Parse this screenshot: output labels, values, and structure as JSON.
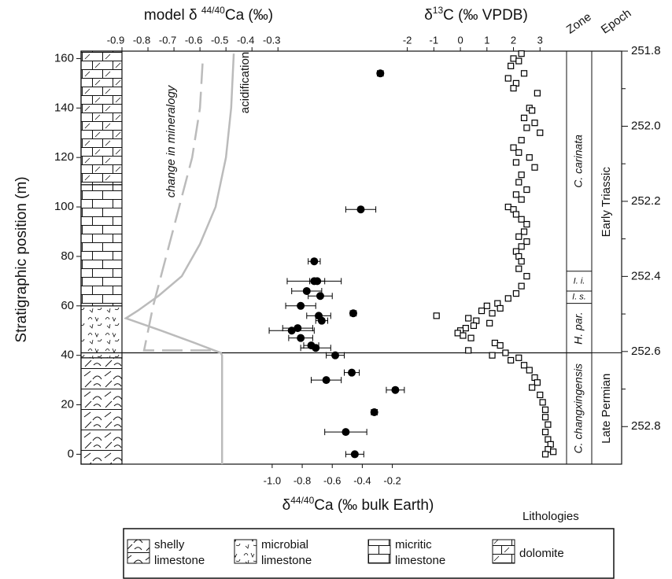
{
  "chart_data": {
    "type": "stratigraphic",
    "y_label": "Stratigraphic position (m)",
    "ylim": [
      -4,
      163
    ],
    "yticks": [
      0,
      20,
      40,
      60,
      80,
      100,
      120,
      140,
      160
    ],
    "model_axis": {
      "label": [
        "model δ ",
        "44/40",
        "Ca (‰)"
      ],
      "xlim": [
        -0.9,
        0.81
      ],
      "xticks": [
        -0.9,
        -0.8,
        -0.7,
        -0.6,
        -0.5,
        -0.4,
        -0.3
      ]
    },
    "c13_axis": {
      "label": [
        "δ",
        "13",
        "C (‰ VPDB)"
      ],
      "xlim": [
        -12.75,
        4
      ],
      "xticks": [
        -2,
        -1,
        0,
        1,
        2,
        3
      ]
    },
    "ca_axis": {
      "label": [
        "δ",
        "44/40",
        "Ca (‰ bulk Earth)"
      ],
      "xlim": [
        -2,
        0.96
      ],
      "xticks": [
        {
          "value": -1,
          "label": "-1.0"
        },
        -0.8,
        -0.6,
        -0.4,
        -0.2
      ]
    },
    "age_axis": {
      "ylim": [
        251.8,
        252.9
      ],
      "yticks": [
        251.8,
        {
          "value": 252,
          "label": "252.0"
        },
        252.2,
        252.4,
        252.6,
        252.8
      ],
      "minor_ticks": [
        251.9,
        252.1,
        252.3,
        252.5,
        252.7
      ]
    },
    "ca_data": {
      "color": "#000000",
      "position": [
        154,
        99,
        78,
        70,
        70,
        66,
        64,
        60,
        57,
        56,
        54,
        51,
        50,
        47,
        44,
        43,
        40,
        33,
        30,
        26,
        17,
        9,
        0
      ],
      "values": [
        -0.28,
        -0.41,
        -0.72,
        -0.72,
        -0.7,
        -0.77,
        -0.68,
        -0.81,
        -0.46,
        -0.69,
        -0.67,
        -0.83,
        -0.87,
        -0.81,
        -0.74,
        -0.71,
        -0.58,
        -0.47,
        -0.64,
        -0.18,
        -0.32,
        -0.51,
        -0.45
      ],
      "errors": [
        0.02,
        0.1,
        0.04,
        0.18,
        0.05,
        0.1,
        0.08,
        0.1,
        0.02,
        0.08,
        0.04,
        0.1,
        0.15,
        0.08,
        0.05,
        0.1,
        0.06,
        0.05,
        0.1,
        0.06,
        0.02,
        0.14,
        0.06
      ]
    },
    "c13_data": {
      "color": "#000000",
      "position": [
        162,
        160,
        159,
        157,
        154,
        152,
        150,
        148,
        146,
        140,
        139,
        136,
        134,
        132,
        130,
        127,
        124,
        122,
        120,
        118,
        116,
        113,
        110,
        107,
        105,
        103,
        100,
        99,
        97,
        95,
        93,
        90,
        88,
        86,
        84,
        82,
        80,
        78,
        75,
        72,
        68,
        65,
        63,
        61,
        60,
        59,
        58,
        57,
        56,
        55,
        54,
        53,
        52,
        51,
        50,
        49,
        48,
        47,
        45,
        44,
        42,
        41,
        40,
        39,
        38,
        36,
        34,
        31,
        29,
        27,
        24,
        21,
        18,
        15,
        12,
        9,
        6,
        4,
        2,
        1,
        0
      ],
      "values": [
        2.3,
        2.0,
        2.2,
        1.9,
        2.4,
        1.8,
        2.1,
        2.0,
        2.9,
        2.6,
        2.7,
        2.4,
        2.8,
        2.5,
        3.0,
        2.3,
        2.0,
        2.2,
        2.6,
        2.1,
        2.8,
        2.3,
        2.2,
        2.5,
        2.1,
        2.3,
        1.8,
        2.0,
        2.1,
        2.3,
        2.5,
        2.4,
        2.2,
        2.5,
        2.3,
        2.1,
        2.2,
        2.3,
        2.2,
        2.5,
        2.3,
        2.1,
        1.8,
        1.4,
        1.0,
        1.5,
        0.8,
        1.2,
        -0.9,
        0.3,
        0.6,
        1.1,
        0.5,
        0.2,
        0.0,
        -0.1,
        0.1,
        0.4,
        1.3,
        1.5,
        0.3,
        1.7,
        1.2,
        2.2,
        1.9,
        2.4,
        2.6,
        2.8,
        2.9,
        2.7,
        3.0,
        3.1,
        3.2,
        3.2,
        3.3,
        3.2,
        3.3,
        3.4,
        3.3,
        3.5,
        3.2
      ]
    },
    "model_curves": [
      {
        "name": "change in mineralogy",
        "color": "#bbbbbb",
        "dashed": true,
        "position": [
          158,
          140,
          120,
          100,
          80,
          60,
          42,
          42
        ],
        "values": [
          -0.59,
          -0.6,
          -0.63,
          -0.68,
          -0.73,
          -0.78,
          -0.815,
          -0.55
        ]
      },
      {
        "name": "acidification",
        "color": "#bbbbbb",
        "dashed": false,
        "position": [
          162,
          140,
          120,
          100,
          85,
          72,
          64,
          58,
          55,
          50,
          45,
          41,
          40,
          -4
        ],
        "values": [
          -0.47,
          -0.48,
          -0.5,
          -0.54,
          -0.6,
          -0.67,
          -0.76,
          -0.84,
          -0.885,
          -0.75,
          -0.62,
          -0.52,
          -0.515,
          -0.515
        ]
      }
    ],
    "boundary": 41,
    "zone_header": "Zone",
    "epoch_header": "Epoch",
    "zones": [
      {
        "name": "C. changxingensis",
        "from": -4,
        "to": 41
      },
      {
        "name": "H. par.",
        "from": 41,
        "to": 61
      },
      {
        "name": "I. s.",
        "from": 61,
        "to": 66
      },
      {
        "name": "I. i.",
        "from": 66,
        "to": 74
      },
      {
        "name": "C. carinata",
        "from": 74,
        "to": 163
      }
    ],
    "epochs": [
      {
        "name": "Late Permian",
        "from": -4,
        "to": 41
      },
      {
        "name": "Early Triassic",
        "from": 41,
        "to": 163
      }
    ],
    "legend": {
      "title": "Lithologies",
      "items": [
        {
          "label": [
            "shelly",
            "limestone"
          ],
          "from": -4,
          "to": 39
        },
        {
          "label": [
            "microbial",
            "limestone"
          ],
          "from": 39,
          "to": 60
        },
        {
          "label": [
            "micritic",
            "limestone"
          ],
          "from": 60,
          "to": 109
        },
        {
          "label": [
            "dolomite"
          ],
          "from": 109,
          "to": 163
        }
      ]
    }
  }
}
